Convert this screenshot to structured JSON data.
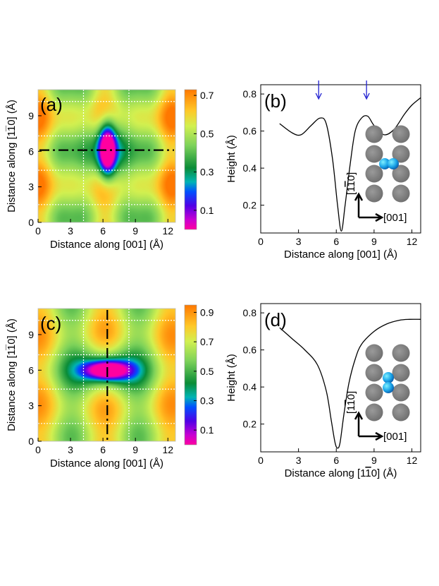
{
  "chart_data": [
    {
      "id": "a",
      "type": "heatmap",
      "panel_label": "(a)",
      "xlabel": "Distance along [001]",
      "xunit": "(Å)",
      "ylabel": "Distance along [1",
      "ylabel_bar": "1",
      "ylabel_end": "0]  (Å)",
      "x_ticks": [
        "0",
        "3",
        "6",
        "9",
        "12"
      ],
      "y_ticks": [
        "0",
        "3",
        "6",
        "9"
      ],
      "xlim": [
        0,
        12.7
      ],
      "ylim": [
        0,
        11.2
      ],
      "colorbar_ticks": [
        "0.7",
        "0.5",
        "0.3",
        "0.1"
      ],
      "colorbar_values": [
        0.7,
        0.5,
        0.3,
        0.1
      ],
      "colorbar_range": [
        0.0,
        0.73
      ],
      "grid_x": [
        4.2,
        8.4
      ],
      "grid_y": [
        1.5,
        4.4,
        7.3,
        10.2
      ],
      "cut_line": "horizontal at y = 6.1",
      "cut_value": 6.1,
      "minimum_region": "vertical well centered at (6.4, 6.1)"
    },
    {
      "id": "b",
      "type": "line",
      "panel_label": "(b)",
      "xlabel": "Distance along [001] (Å)",
      "ylabel": "Height (Å)",
      "x_ticks": [
        "0",
        "3",
        "6",
        "9",
        "12"
      ],
      "y_ticks": [
        "0.2",
        "0.4",
        "0.6",
        "0.8"
      ],
      "xlim": [
        0,
        12.7
      ],
      "ylim": [
        0.05,
        0.85
      ],
      "x": [
        1.5,
        2.5,
        3.2,
        4.0,
        4.7,
        5.2,
        5.7,
        6.1,
        6.4,
        6.7,
        7.1,
        7.5,
        8.0,
        8.5,
        9.0,
        9.8,
        10.6,
        11.4,
        12.0,
        12.7
      ],
      "y": [
        0.64,
        0.59,
        0.58,
        0.63,
        0.67,
        0.64,
        0.45,
        0.2,
        0.06,
        0.2,
        0.42,
        0.6,
        0.67,
        0.68,
        0.63,
        0.58,
        0.61,
        0.69,
        0.74,
        0.78
      ],
      "arrows_at_x": [
        4.6,
        8.4
      ],
      "inset_labels": {
        "vertical": "[1",
        "vertical_bar": "1",
        "vertical_end": "0]",
        "horizontal": "[001]"
      },
      "adsorbate_orientation": "horizontal"
    },
    {
      "id": "c",
      "type": "heatmap",
      "panel_label": "(c)",
      "xlabel": "Distance along [001]",
      "xunit": "(Å)",
      "ylabel": "Distance along [1",
      "ylabel_bar": "1",
      "ylabel_end": "0]  (Å)",
      "x_ticks": [
        "0",
        "3",
        "6",
        "9",
        "12"
      ],
      "y_ticks": [
        "0",
        "3",
        "6",
        "9"
      ],
      "xlim": [
        0,
        12.7
      ],
      "ylim": [
        0,
        11.2
      ],
      "colorbar_ticks": [
        "0.9",
        "0.7",
        "0.5",
        "0.3",
        "0.1"
      ],
      "colorbar_values": [
        0.9,
        0.7,
        0.5,
        0.3,
        0.1
      ],
      "colorbar_range": [
        0.0,
        0.95
      ],
      "grid_x": [
        4.2,
        8.4
      ],
      "grid_y": [
        1.5,
        4.4,
        7.3,
        10.2
      ],
      "cut_line": "vertical at x = 6.4",
      "cut_value": 6.4,
      "minimum_region": "horizontal well centered at (6.4, 6.0)"
    },
    {
      "id": "d",
      "type": "line",
      "panel_label": "(d)",
      "xlabel": "Distance along [1",
      "xlabel_bar": "1",
      "xlabel_end": "0] (Å)",
      "ylabel": "Height (Å)",
      "x_ticks": [
        "0",
        "3",
        "6",
        "9",
        "12"
      ],
      "y_ticks": [
        "0.2",
        "0.4",
        "0.6",
        "0.8"
      ],
      "xlim": [
        0,
        12.7
      ],
      "ylim": [
        0.05,
        0.85
      ],
      "x": [
        1.5,
        2.5,
        3.5,
        4.5,
        5.2,
        5.6,
        5.9,
        6.1,
        6.3,
        6.6,
        7.0,
        7.5,
        8.0,
        9.0,
        10.0,
        11.0,
        11.8,
        12.7
      ],
      "y": [
        0.72,
        0.66,
        0.6,
        0.52,
        0.38,
        0.22,
        0.1,
        0.07,
        0.1,
        0.25,
        0.42,
        0.55,
        0.63,
        0.7,
        0.74,
        0.76,
        0.765,
        0.765
      ],
      "inset_labels": {
        "vertical": "[1",
        "vertical_bar": "1",
        "vertical_end": "0]",
        "horizontal": "[001]"
      },
      "adsorbate_orientation": "vertical"
    }
  ]
}
